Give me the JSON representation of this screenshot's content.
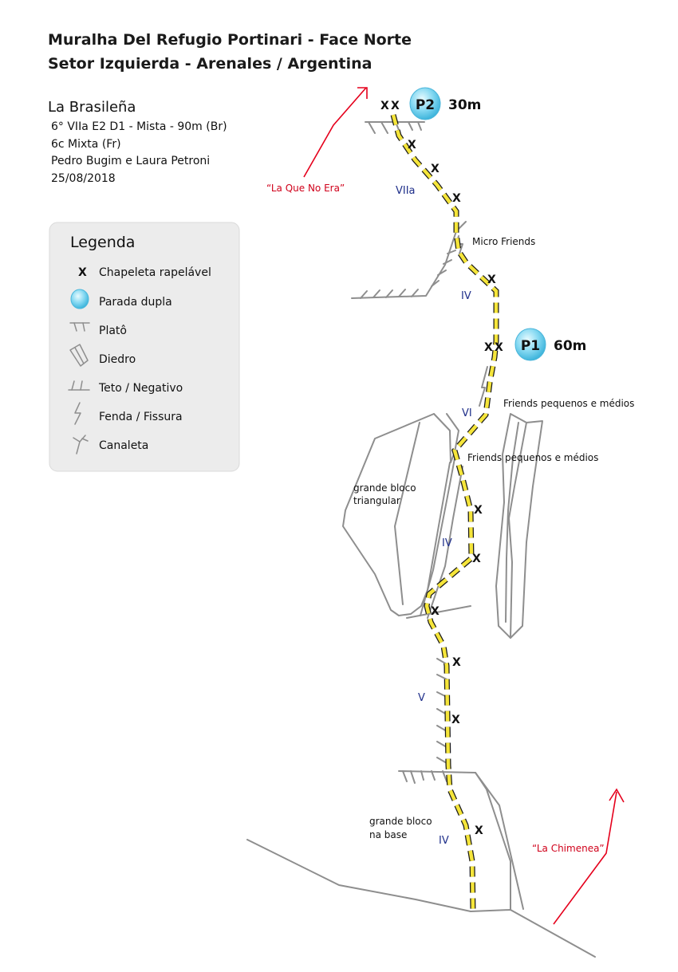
{
  "header": {
    "line1": "Muralha Del Refugio Portinari - Face Norte",
    "line2": "Setor Izquierda - Arenales / Argentina"
  },
  "route": {
    "name": "La Brasileña",
    "grade_br": "6° VIIa E2 D1 - Mista - 90m  (Br)",
    "grade_fr": "6c Mixta (Fr)",
    "authors": "Pedro Bugim e Laura Petroni",
    "date": "25/08/2018"
  },
  "legend": {
    "title": "Legenda",
    "items": [
      {
        "symbol": "x",
        "label": "Chapeleta rapelável"
      },
      {
        "symbol": "double-anchor",
        "label": "Parada dupla"
      },
      {
        "symbol": "ledge",
        "label": "Platô"
      },
      {
        "symbol": "dihedral",
        "label": "Diedro"
      },
      {
        "symbol": "roof",
        "label": "Teto / Negativo"
      },
      {
        "symbol": "crack",
        "label": "Fenda / Fissura"
      },
      {
        "symbol": "gully",
        "label": "Canaleta"
      }
    ]
  },
  "stations": [
    {
      "id": "P2",
      "length": "30m"
    },
    {
      "id": "P1",
      "length": "60m"
    }
  ],
  "bolt_symbol": "X",
  "grades": {
    "pitch2_upper": "VIIa",
    "pitch2_lower": "IV",
    "pitch1_top": "VI",
    "pitch1_middle": "IV",
    "pitch1_lower": "V",
    "pitch1_base": "IV"
  },
  "notes": {
    "micro_friends": "Micro Friends",
    "friends_upper": "Friends pequenos e médios",
    "friends_lower": "Friends pequenos e médios",
    "triangular_block_1": "grande bloco",
    "triangular_block_2": "triangular",
    "base_block_1": "grande bloco",
    "base_block_2": "na base"
  },
  "neighbors": {
    "left": "“La Que No Era”",
    "right": "“La Chimenea”"
  },
  "colors": {
    "route_dash": "#f5e53a",
    "route_outline": "#1a1a1a",
    "station": "#7fd6f0",
    "grade_text": "#1f2f8a",
    "neighbor": "#d0001a",
    "rock_lines": "#8e8e8e",
    "legend_bg": "#ececec"
  }
}
